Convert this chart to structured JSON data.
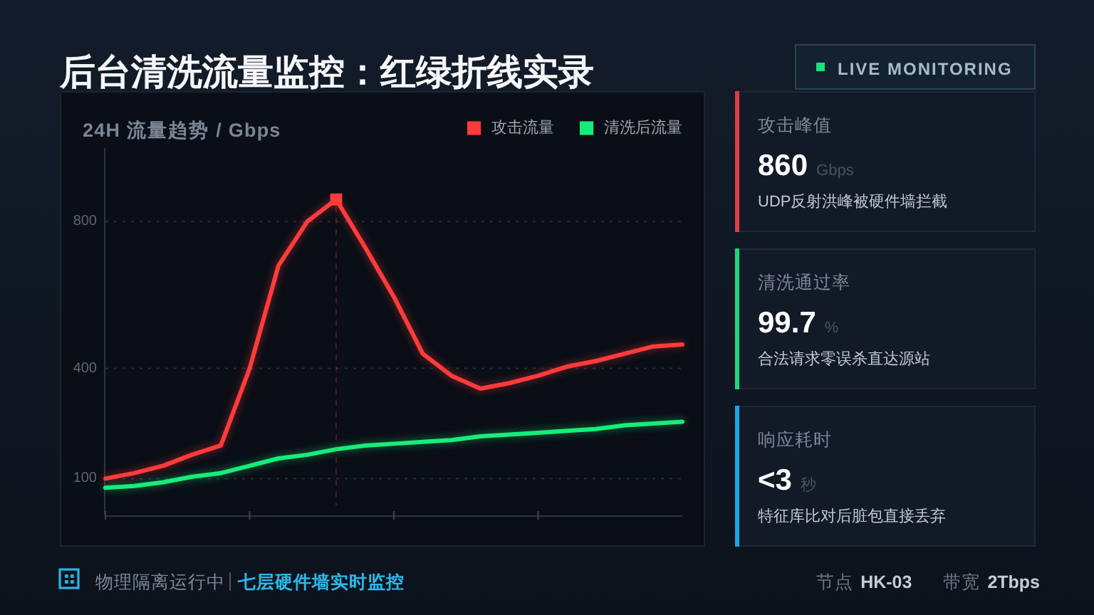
{
  "chart_data": [
    {
      "type": "line",
      "title": "后台清洗流量监控：红绿折线实录",
      "subtitle": "24H 流量趋势 / Gbps",
      "categories": [
        null,
        null,
        null,
        null,
        null,
        null,
        null,
        null,
        null,
        null,
        null,
        null,
        null,
        null,
        null,
        null,
        null,
        null,
        null,
        null,
        null
      ],
      "ylim": [
        0,
        1000
      ],
      "yticks": [
        100,
        400,
        800
      ],
      "grid": "y",
      "legend": "top right",
      "tick_labels": "y",
      "series": [
        {
          "name": "攻击流量",
          "color": "#ff3b3b",
          "values": [
            100,
            115,
            135,
            165,
            190,
            400,
            680,
            800,
            860,
            730,
            595,
            440,
            380,
            345,
            360,
            380,
            405,
            420,
            440,
            460,
            465
          ]
        },
        {
          "name": "清洗后流量",
          "color": "#19ec7a",
          "values": [
            75,
            80,
            90,
            105,
            115,
            135,
            155,
            165,
            180,
            190,
            195,
            200,
            205,
            215,
            220,
            225,
            230,
            235,
            245,
            250,
            255
          ]
        },
        {
          "type": "scatter",
          "color": "#ff3b3b",
          "marker": "square",
          "values": [
            null,
            null,
            null,
            null,
            null,
            null,
            null,
            null,
            860,
            null,
            null,
            null,
            null,
            null,
            null,
            null,
            null,
            null,
            null,
            null,
            null
          ]
        }
      ],
      "annotations": [
        "LIVE MONITORING",
        "物理隔离运行中",
        "七层硬件墙实时监控",
        "节点",
        "HK-03",
        "带宽",
        "2Tbps"
      ]
    },
    {
      "type": "other",
      "title": "攻击峰值",
      "annotations": [
        "860",
        "Gbps",
        "UDP反射洪峰被硬件墙拦截"
      ]
    },
    {
      "type": "other",
      "title": "清洗通过率",
      "annotations": [
        "99.7",
        "%",
        "合法请求零误杀直达源站"
      ]
    },
    {
      "type": "other",
      "title": "响应耗时",
      "annotations": [
        "<3",
        "秒",
        "特征库比对后脏包直接丢弃"
      ]
    }
  ]
}
